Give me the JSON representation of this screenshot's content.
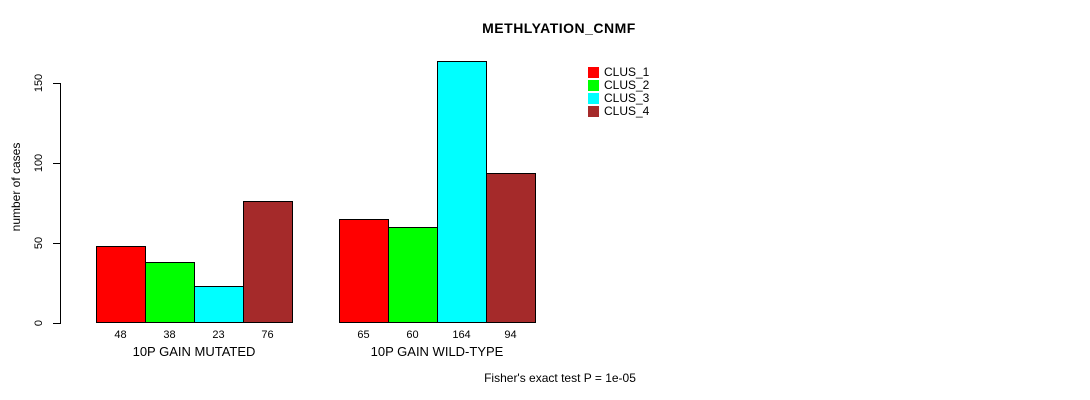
{
  "title": "METHLYATION_CNMF",
  "ylabel": "number of cases",
  "footer": "Fisher's exact test P = 1e-05",
  "chart_data": {
    "type": "bar",
    "title": "METHLYATION_CNMF",
    "xlabel": "",
    "ylabel": "number of cases",
    "groups": [
      "10P GAIN MUTATED",
      "10P GAIN WILD-TYPE"
    ],
    "series": [
      {
        "name": "CLUS_1",
        "color": "#FF0000",
        "values": [
          48,
          65
        ]
      },
      {
        "name": "CLUS_2",
        "color": "#00FF00",
        "values": [
          38,
          60
        ]
      },
      {
        "name": "CLUS_3",
        "color": "#00FFFF",
        "values": [
          23,
          164
        ]
      },
      {
        "name": "CLUS_4",
        "color": "#A52A2A",
        "values": [
          76,
          94
        ]
      }
    ],
    "bar_value_labels": [
      [
        48,
        38,
        23,
        76
      ],
      [
        65,
        60,
        164,
        94
      ]
    ],
    "yticks": [
      0,
      50,
      100,
      150
    ],
    "ylim": [
      0,
      164
    ],
    "grid": false,
    "legend_position": "top-right",
    "annotation": "Fisher's exact test P = 1e-05"
  }
}
